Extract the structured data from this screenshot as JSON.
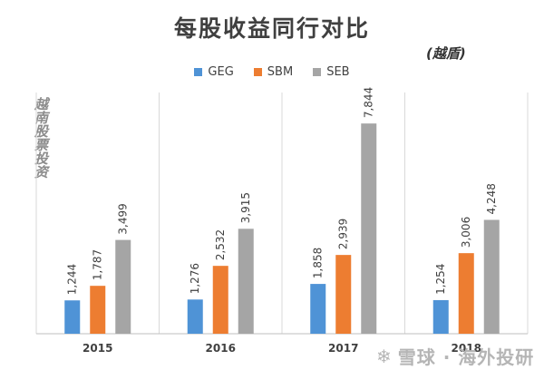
{
  "title": "每股收益同行对比",
  "subtitle": "(越盾)",
  "watermark_left": "越南股票投资",
  "watermark_bottom": "雪球 · 海外投研",
  "colors": {
    "GEG": "#4f93d6",
    "SBM": "#ed7d31",
    "SEB": "#a5a5a5"
  },
  "chart_data": {
    "type": "bar",
    "categories": [
      "2015",
      "2016",
      "2017",
      "2018"
    ],
    "series": [
      {
        "name": "GEG",
        "values": [
          1244,
          1276,
          1858,
          1254
        ],
        "labels": [
          "1,244",
          "1,276",
          "1,858",
          "1,254"
        ]
      },
      {
        "name": "SBM",
        "values": [
          1787,
          2532,
          2939,
          3006
        ],
        "labels": [
          "1,787",
          "2,532",
          "2,939",
          "3,006"
        ]
      },
      {
        "name": "SEB",
        "values": [
          3499,
          3915,
          7844,
          4248
        ],
        "labels": [
          "3,499",
          "3,915",
          "7,844",
          "4,248"
        ]
      }
    ],
    "legend_position": "top",
    "ylim": [
      0,
      9000
    ],
    "y_axis_visible": false
  }
}
